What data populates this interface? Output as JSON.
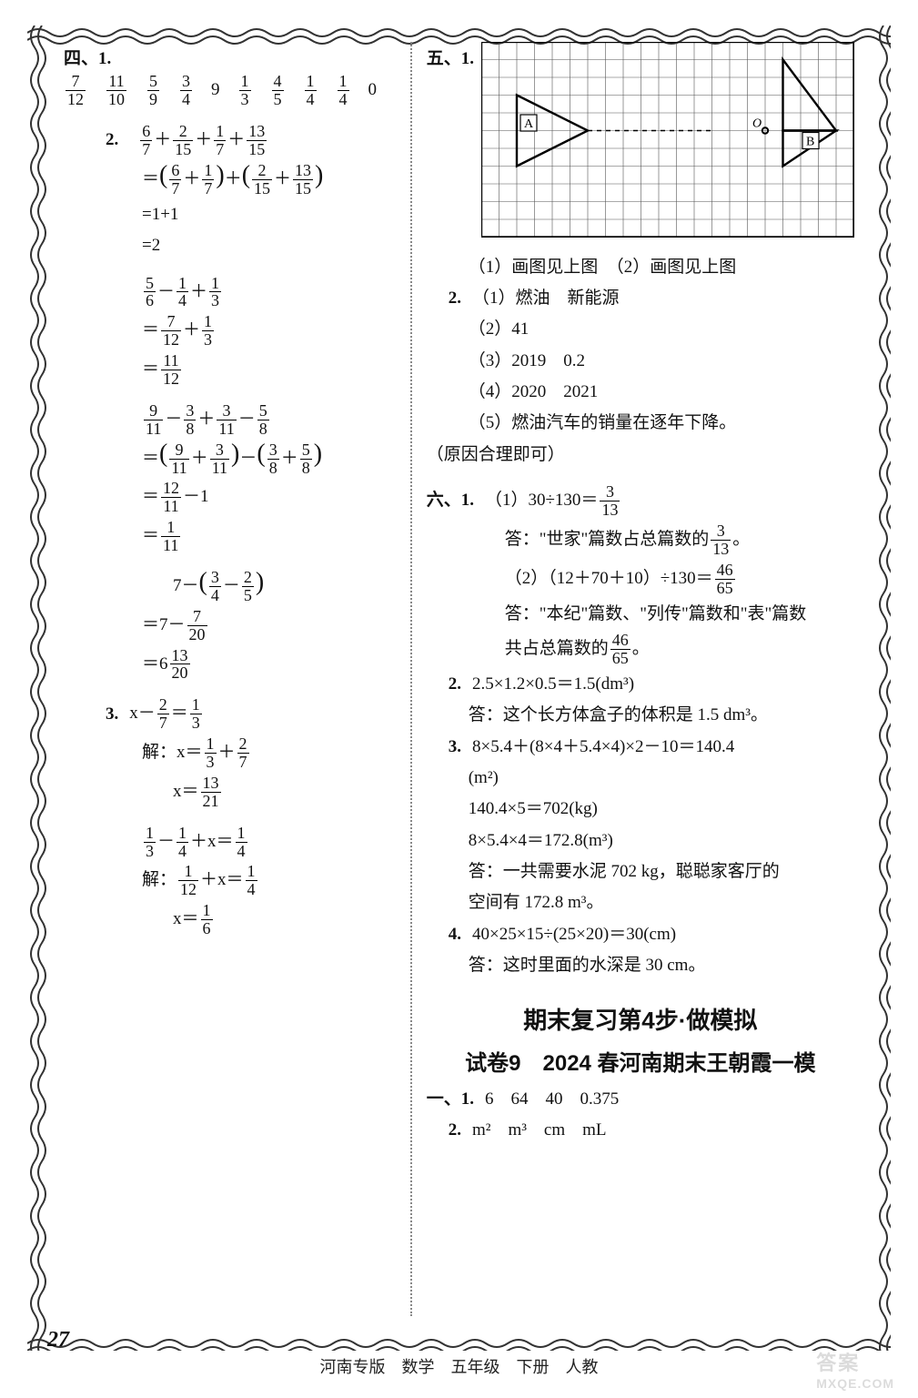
{
  "page_number": "27",
  "footer": "河南专版　数学　五年级　下册　人教",
  "watermark_line1": "答案",
  "watermark_line2": "MXQE.COM",
  "left": {
    "s4": "四、",
    "s4_q1": "1.",
    "s4_q1_values": [
      "7",
      "12",
      "11",
      "10",
      "5",
      "9",
      "3",
      "4",
      "9",
      "1",
      "3",
      "4",
      "5",
      "1",
      "4",
      "1",
      "4",
      "0"
    ],
    "s4_q2": "2.",
    "p2a_1": [
      "6",
      "7",
      "2",
      "15",
      "1",
      "7",
      "13",
      "15"
    ],
    "p2a_2": [
      "6",
      "7",
      "1",
      "7",
      "2",
      "15",
      "13",
      "15"
    ],
    "p2a_3": "=1+1",
    "p2a_4": "=2",
    "p2b_1": [
      "5",
      "6",
      "1",
      "4",
      "1",
      "3"
    ],
    "p2b_2": [
      "7",
      "12",
      "1",
      "3"
    ],
    "p2b_3": [
      "11",
      "12"
    ],
    "p2c_1": [
      "9",
      "11",
      "3",
      "8",
      "3",
      "11",
      "5",
      "8"
    ],
    "p2c_2": [
      "9",
      "11",
      "3",
      "11",
      "3",
      "8",
      "5",
      "8"
    ],
    "p2c_3": [
      "12",
      "11"
    ],
    "p2c_4": [
      "1",
      "11"
    ],
    "p2d_1": [
      "3",
      "4",
      "2",
      "5"
    ],
    "p2d_2": [
      "7",
      "20"
    ],
    "p2d_3": [
      "13",
      "20"
    ],
    "s4_q3": "3.",
    "p3a_1": [
      "2",
      "7",
      "1",
      "3"
    ],
    "p3a_2": [
      "1",
      "3",
      "2",
      "7"
    ],
    "p3a_3": [
      "13",
      "21"
    ],
    "p3b_1": [
      "1",
      "3",
      "1",
      "4",
      "1",
      "4"
    ],
    "p3b_2": [
      "1",
      "12",
      "1",
      "4"
    ],
    "p3b_3": [
      "1",
      "6"
    ],
    "jie": "解：",
    "x": "x"
  },
  "right": {
    "s5": "五、",
    "s5_q1": "1.",
    "grid": {
      "cols": 21,
      "rows": 11,
      "cell": 19.5,
      "A_label": "A",
      "B_label": "B",
      "O_label": "O",
      "triA": [
        [
          2,
          3
        ],
        [
          6,
          5
        ],
        [
          2,
          7
        ]
      ],
      "triB_outer": [
        [
          17,
          1
        ],
        [
          20,
          5
        ],
        [
          17,
          5
        ]
      ],
      "triB_inner": [
        [
          17,
          5
        ],
        [
          20,
          5
        ],
        [
          17,
          7
        ]
      ],
      "O": [
        16,
        5
      ],
      "dash_from": [
        6,
        5
      ],
      "dash_to": [
        13,
        5
      ]
    },
    "s5_1_ans": "（1）画图见上图　（2）画图见上图",
    "s5_q2": "2.",
    "s5_2_1": "（1）燃油　新能源",
    "s5_2_2": "（2）41",
    "s5_2_3": "（3）2019　0.2",
    "s5_2_4": "（4）2020　2021",
    "s5_2_5": "（5）燃油汽车的销量在逐年下降。",
    "s5_2_note": "（原因合理即可）",
    "s6": "六、",
    "s6_q1": "1.",
    "s6_1_1_pre": "（1）30÷130＝",
    "s6_1_1_frac": [
      "3",
      "13"
    ],
    "s6_1_1_ans_a": "答：\"世家\"篇数占总篇数的",
    "s6_1_1_ans_frac": [
      "3",
      "13"
    ],
    "s6_1_1_ans_b": "。",
    "s6_1_2_pre": "（2）（12＋70＋10）÷130＝",
    "s6_1_2_frac": [
      "46",
      "65"
    ],
    "s6_1_2_ans_a": "答：\"本纪\"篇数、\"列传\"篇数和\"表\"篇数",
    "s6_1_2_ans_b": "共占总篇数的",
    "s6_1_2_ans_frac": [
      "46",
      "65"
    ],
    "s6_1_2_ans_c": "。",
    "s6_q2": "2.",
    "s6_2_1": "2.5×1.2×0.5＝1.5(dm³)",
    "s6_2_2": "答：这个长方体盒子的体积是 1.5 dm³。",
    "s6_q3": "3.",
    "s6_3_1": "8×5.4＋(8×4＋5.4×4)×2－10＝140.4",
    "s6_3_1b": "(m²)",
    "s6_3_2": "140.4×5＝702(kg)",
    "s6_3_3": "8×5.4×4＝172.8(m³)",
    "s6_3_4a": "答：一共需要水泥 702 kg，聪聪家客厅的",
    "s6_3_4b": "空间有 172.8 m³。",
    "s6_q4": "4.",
    "s6_4_1": "40×25×15÷(25×20)＝30(cm)",
    "s6_4_2": "答：这时里面的水深是 30 cm。",
    "title1": "期末复习第4步·做模拟",
    "title2": "试卷9　2024 春河南期末王朝霞一模",
    "new_s1": "一、",
    "new_q1": "1.",
    "new_1_vals": "6　64　40　0.375",
    "new_q2": "2.",
    "new_2_vals": "m²　m³　cm　mL"
  }
}
